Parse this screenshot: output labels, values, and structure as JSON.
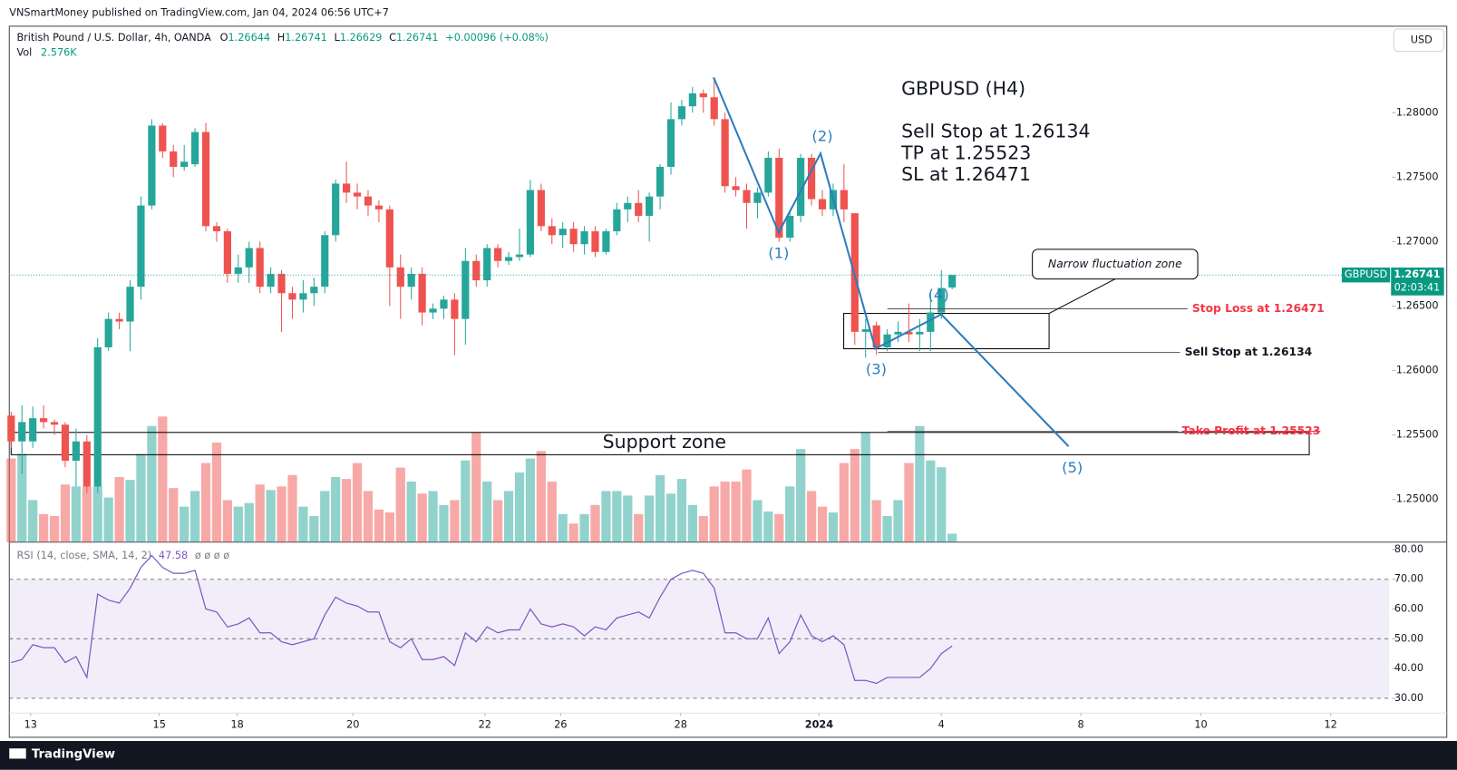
{
  "header": {
    "published": "VNSmartMoney published on TradingView.com, Jan 04, 2024 06:56 UTC+7",
    "symbol": "British Pound / U.S. Dollar, 4h, OANDA",
    "o": "O",
    "h": "H",
    "l": "L",
    "c": "C",
    "change": "+0.00096 (+0.08%)",
    "vol": "Vol",
    "vol_value": "2.576K",
    "currency": "USD",
    "ticker": "GBPUSD",
    "countdown": "02:03:41",
    "footer": "TradingView"
  },
  "annotations": {
    "title": "GBPUSD (H4)",
    "line1": "Sell Stop at 1.26134",
    "line2": "TP at 1.25523",
    "line3": "SL at 1.26471",
    "narrow": "Narrow fluctuation zone",
    "stop_loss": "Stop Loss at 1.26471",
    "sell_stop": "Sell Stop at 1.26134",
    "take_profit": "Take Profit at 1.25523",
    "support": "Support zone",
    "waves": [
      "(1)",
      "(2)",
      "(3)",
      "(4)",
      "(5)"
    ]
  },
  "chart_data": {
    "type": "candlestick",
    "open": [
      1.2565,
      1.2545,
      1.2545,
      1.2563,
      1.256,
      1.2558,
      1.253,
      1.2545,
      1.251,
      1.2618,
      1.264,
      1.2638,
      1.2665,
      1.2728,
      1.279,
      1.277,
      1.2758,
      1.276,
      1.2785,
      1.2712,
      1.2708,
      1.2675,
      1.268,
      1.2695,
      1.2665,
      1.2675,
      1.266,
      1.2655,
      1.266,
      1.2665,
      1.2705,
      1.2745,
      1.2738,
      1.2735,
      1.2728,
      1.2725,
      1.268,
      1.2665,
      1.2675,
      1.2645,
      1.2648,
      1.2655,
      1.264,
      1.2685,
      1.267,
      1.2695,
      1.2685,
      1.2688,
      1.269,
      1.274,
      1.2712,
      1.2705,
      1.271,
      1.2698,
      1.2708,
      1.2692,
      1.2708,
      1.2725,
      1.273,
      1.272,
      1.2735,
      1.2758,
      1.2795,
      1.2805,
      1.2815,
      1.2812,
      1.2795,
      1.2743,
      1.274,
      1.273,
      1.2738,
      1.2765,
      1.2703,
      1.272,
      1.2765,
      1.2733,
      1.2725,
      1.274,
      1.2722,
      1.263,
      1.2635,
      1.2618,
      1.2628,
      1.263,
      1.2628,
      1.263,
      1.2645,
      1.26644
    ],
    "high": [
      1.2568,
      1.2573,
      1.2572,
      1.2573,
      1.2562,
      1.256,
      1.2555,
      1.255,
      1.2625,
      1.2645,
      1.2645,
      1.267,
      1.2735,
      1.2795,
      1.2792,
      1.2775,
      1.2775,
      1.2788,
      1.2792,
      1.2715,
      1.271,
      1.269,
      1.27,
      1.27,
      1.268,
      1.2678,
      1.2665,
      1.267,
      1.2672,
      1.2708,
      1.2748,
      1.2762,
      1.2745,
      1.274,
      1.2732,
      1.2728,
      1.269,
      1.268,
      1.268,
      1.2652,
      1.2658,
      1.266,
      1.2695,
      1.269,
      1.2698,
      1.2698,
      1.2692,
      1.271,
      1.2748,
      1.2745,
      1.2718,
      1.2715,
      1.2715,
      1.2712,
      1.2712,
      1.271,
      1.273,
      1.2735,
      1.274,
      1.2738,
      1.276,
      1.2808,
      1.281,
      1.282,
      1.2818,
      1.2825,
      1.28,
      1.275,
      1.2745,
      1.2742,
      1.277,
      1.2772,
      1.2725,
      1.2768,
      1.2768,
      1.274,
      1.2745,
      1.276,
      1.2722,
      1.264,
      1.2638,
      1.2632,
      1.2638,
      1.2652,
      1.264,
      1.266,
      1.2678,
      1.26741
    ],
    "low": [
      1.254,
      1.252,
      1.254,
      1.2555,
      1.255,
      1.2525,
      1.251,
      1.2505,
      1.2505,
      1.2615,
      1.2632,
      1.2615,
      1.2655,
      1.2725,
      1.2765,
      1.275,
      1.2755,
      1.2758,
      1.2708,
      1.27,
      1.2668,
      1.2668,
      1.2668,
      1.266,
      1.266,
      1.263,
      1.264,
      1.2645,
      1.265,
      1.266,
      1.27,
      1.273,
      1.2725,
      1.272,
      1.2715,
      1.265,
      1.264,
      1.2655,
      1.2635,
      1.264,
      1.264,
      1.2612,
      1.262,
      1.2665,
      1.2665,
      1.268,
      1.2682,
      1.2685,
      1.2688,
      1.2708,
      1.2698,
      1.2695,
      1.2692,
      1.269,
      1.2688,
      1.269,
      1.2705,
      1.2715,
      1.2715,
      1.27,
      1.2725,
      1.2752,
      1.279,
      1.28,
      1.28,
      1.279,
      1.2738,
      1.2735,
      1.271,
      1.2718,
      1.2735,
      1.27,
      1.27,
      1.2715,
      1.2728,
      1.272,
      1.272,
      1.2715,
      1.262,
      1.261,
      1.2612,
      1.2615,
      1.2622,
      1.2622,
      1.2615,
      1.2615,
      1.264,
      1.26629
    ],
    "close": [
      1.2545,
      1.256,
      1.2563,
      1.256,
      1.2558,
      1.253,
      1.2545,
      1.251,
      1.2618,
      1.264,
      1.2638,
      1.2665,
      1.2728,
      1.279,
      1.277,
      1.2758,
      1.2762,
      1.2785,
      1.2712,
      1.2708,
      1.2675,
      1.268,
      1.2695,
      1.2665,
      1.2675,
      1.266,
      1.2655,
      1.266,
      1.2665,
      1.2705,
      1.2745,
      1.2738,
      1.2735,
      1.2728,
      1.2725,
      1.268,
      1.2665,
      1.2675,
      1.2645,
      1.2648,
      1.2655,
      1.264,
      1.2685,
      1.267,
      1.2695,
      1.2685,
      1.2688,
      1.269,
      1.274,
      1.2712,
      1.2705,
      1.271,
      1.2698,
      1.2708,
      1.2692,
      1.2708,
      1.2725,
      1.273,
      1.272,
      1.2735,
      1.2758,
      1.2795,
      1.2805,
      1.2815,
      1.2812,
      1.2795,
      1.2743,
      1.274,
      1.273,
      1.2738,
      1.2765,
      1.2703,
      1.272,
      1.2765,
      1.2733,
      1.2725,
      1.274,
      1.2725,
      1.263,
      1.2632,
      1.2618,
      1.2628,
      1.263,
      1.2628,
      1.263,
      1.2645,
      1.2664,
      1.26741
    ],
    "volume": [
      25.7,
      27.1,
      12.9,
      8.6,
      8.0,
      17.7,
      17.1,
      17.1,
      17.1,
      13.7,
      20.0,
      19.1,
      27.1,
      35.7,
      38.6,
      16.6,
      10.9,
      15.7,
      24.3,
      30.6,
      12.9,
      10.9,
      12.0,
      17.7,
      16.0,
      17.1,
      20.6,
      10.9,
      8.0,
      15.7,
      20.0,
      19.4,
      24.3,
      15.7,
      10.0,
      9.1,
      22.9,
      18.6,
      14.9,
      15.7,
      11.4,
      12.9,
      25.1,
      33.7,
      18.6,
      12.9,
      15.7,
      21.4,
      25.7,
      28.0,
      18.6,
      8.6,
      5.7,
      8.6,
      11.4,
      15.7,
      15.7,
      14.3,
      8.6,
      14.3,
      20.6,
      14.9,
      19.4,
      11.4,
      8.0,
      17.1,
      18.6,
      18.6,
      22.3,
      12.9,
      9.4,
      8.6,
      17.1,
      28.6,
      15.7,
      10.9,
      9.1,
      24.3,
      28.6,
      33.7,
      12.9,
      8.0,
      12.9,
      24.3,
      35.7,
      25.1,
      23.0,
      2.576
    ],
    "up_color": "#26a69a",
    "down_color": "#ef5350",
    "ylim": [
      1.24669,
      1.28671
    ],
    "yticks": [
      {
        "value": 1.25,
        "label": "1.25000"
      },
      {
        "value": 1.255,
        "label": "1.25500"
      },
      {
        "value": 1.26,
        "label": "1.26000"
      },
      {
        "value": 1.265,
        "label": "1.26500"
      },
      {
        "value": 1.27,
        "label": "1.27000"
      },
      {
        "value": 1.275,
        "label": "1.27500"
      },
      {
        "value": 1.28,
        "label": "1.28000"
      }
    ],
    "xticks": [
      {
        "value": 1.8,
        "label": "13"
      },
      {
        "value": 13.7,
        "label": "15"
      },
      {
        "value": 20.9,
        "label": "18"
      },
      {
        "value": 31.6,
        "label": "20"
      },
      {
        "value": 43.8,
        "label": "22"
      },
      {
        "value": 50.8,
        "label": "26"
      },
      {
        "value": 61.9,
        "label": "28"
      },
      {
        "value": 74.7,
        "label": "2024"
      },
      {
        "value": 86,
        "label": "4"
      },
      {
        "value": 98.9,
        "label": "8"
      },
      {
        "value": 110,
        "label": "10"
      },
      {
        "value": 122,
        "label": "12"
      }
    ],
    "rsi": {
      "name": "RSI (14, close, SMA, 14, 2)",
      "flags": "ø ø ø ø",
      "color": "#7e57c2",
      "values": [
        42,
        43,
        48,
        47,
        47,
        42,
        44,
        37,
        65,
        63,
        62,
        67,
        74,
        78,
        74,
        72,
        72,
        73,
        60,
        59,
        54,
        55,
        57,
        52,
        52,
        49,
        48,
        49,
        50,
        58,
        64,
        62,
        61,
        59,
        59,
        49,
        47,
        50,
        43,
        43,
        44,
        41,
        52,
        49,
        54,
        52,
        53,
        53,
        60,
        55,
        54,
        55,
        54,
        51,
        54,
        53,
        57,
        58,
        59,
        57,
        64,
        70,
        72,
        73,
        72,
        67,
        52,
        52,
        50,
        50,
        57,
        45,
        49,
        58,
        51,
        49,
        51,
        48,
        36,
        36,
        35,
        37,
        37,
        37,
        37,
        40,
        45,
        47.58
      ],
      "ylim": [
        25,
        82.2
      ],
      "yticks": [
        {
          "value": 30,
          "label": "30.00"
        },
        {
          "value": 40,
          "label": "40.00"
        },
        {
          "value": 50,
          "label": "50.00"
        },
        {
          "value": 60,
          "label": "60.00"
        },
        {
          "value": 70,
          "label": "70.00"
        },
        {
          "value": 80,
          "label": "80.00"
        }
      ],
      "band": [
        30,
        70
      ],
      "levels": [
        30,
        50,
        70
      ]
    }
  }
}
